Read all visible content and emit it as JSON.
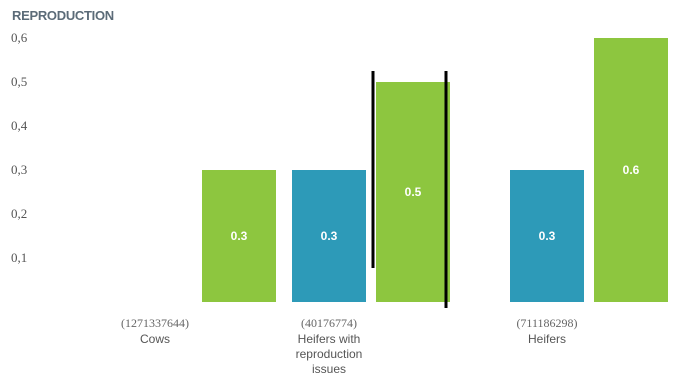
{
  "chart_data": {
    "type": "bar",
    "title": "REPRODUCTION",
    "xlabel": "",
    "ylabel": "",
    "ylim": [
      0,
      0.6
    ],
    "y_ticks": [
      "0,1",
      "0,2",
      "0,3",
      "0,4",
      "0,5",
      "0,6"
    ],
    "y_tick_values": [
      0.1,
      0.2,
      0.3,
      0.4,
      0.5,
      0.6
    ],
    "categories": [
      {
        "id": "(1271337644)",
        "name_lines": [
          "Cows"
        ]
      },
      {
        "id": "(40176774)",
        "name_lines": [
          "Heifers with",
          "reproduction",
          "issues"
        ]
      },
      {
        "id": "(711186298)",
        "name_lines": [
          "Heifers"
        ]
      }
    ],
    "series": [
      {
        "color": "#2d9ab8",
        "values": [
          null,
          0.3,
          0.3
        ],
        "labels": [
          "",
          "0.3",
          "0.3"
        ]
      },
      {
        "color": "#8dc63f",
        "values": [
          0.3,
          0.5,
          0.6
        ],
        "labels": [
          "0.3",
          "0.5",
          "0.6"
        ]
      }
    ],
    "grid": false,
    "legend": "none",
    "annotations": "two vertical black lines around the middle green bar"
  }
}
